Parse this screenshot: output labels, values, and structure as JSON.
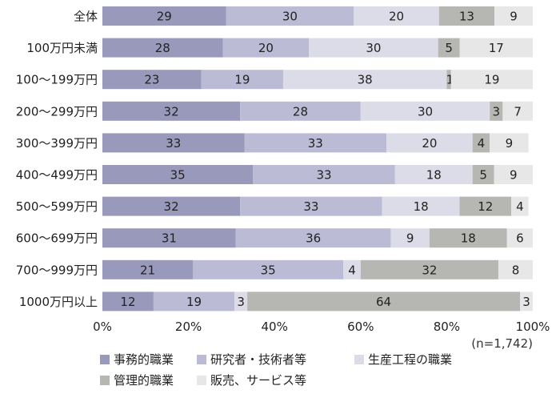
{
  "chart_data": {
    "type": "bar",
    "orientation": "horizontal",
    "stacked": true,
    "categories": [
      "全体",
      "100万円未満",
      "100～199万円",
      "200～299万円",
      "300～399万円",
      "400～499万円",
      "500～599万円",
      "600～699万円",
      "700～999万円",
      "1000万円以上"
    ],
    "series": [
      {
        "name": "事務的職業",
        "color": "#9999bb",
        "values": [
          29,
          28,
          23,
          32,
          33,
          35,
          32,
          31,
          21,
          12
        ]
      },
      {
        "name": "研究者・技術者等",
        "color": "#bbbbd6",
        "values": [
          30,
          20,
          19,
          28,
          33,
          33,
          33,
          36,
          35,
          19
        ]
      },
      {
        "name": "生産工程の職業",
        "color": "#dcdce8",
        "values": [
          20,
          30,
          38,
          30,
          20,
          18,
          18,
          9,
          4,
          3
        ]
      },
      {
        "name": "管理的職業",
        "color": "#b6b6b2",
        "values": [
          13,
          5,
          1,
          3,
          4,
          5,
          12,
          18,
          32,
          64
        ]
      },
      {
        "name": "販売、サービス等",
        "color": "#e7e7e7",
        "values": [
          9,
          17,
          19,
          7,
          9,
          9,
          4,
          6,
          8,
          3
        ]
      }
    ],
    "x_ticks": [
      "0%",
      "20%",
      "40%",
      "60%",
      "80%",
      "100%"
    ],
    "xlim": [
      0,
      100
    ],
    "note": "(n=1,742)",
    "grid": false,
    "legend_position": "bottom"
  }
}
